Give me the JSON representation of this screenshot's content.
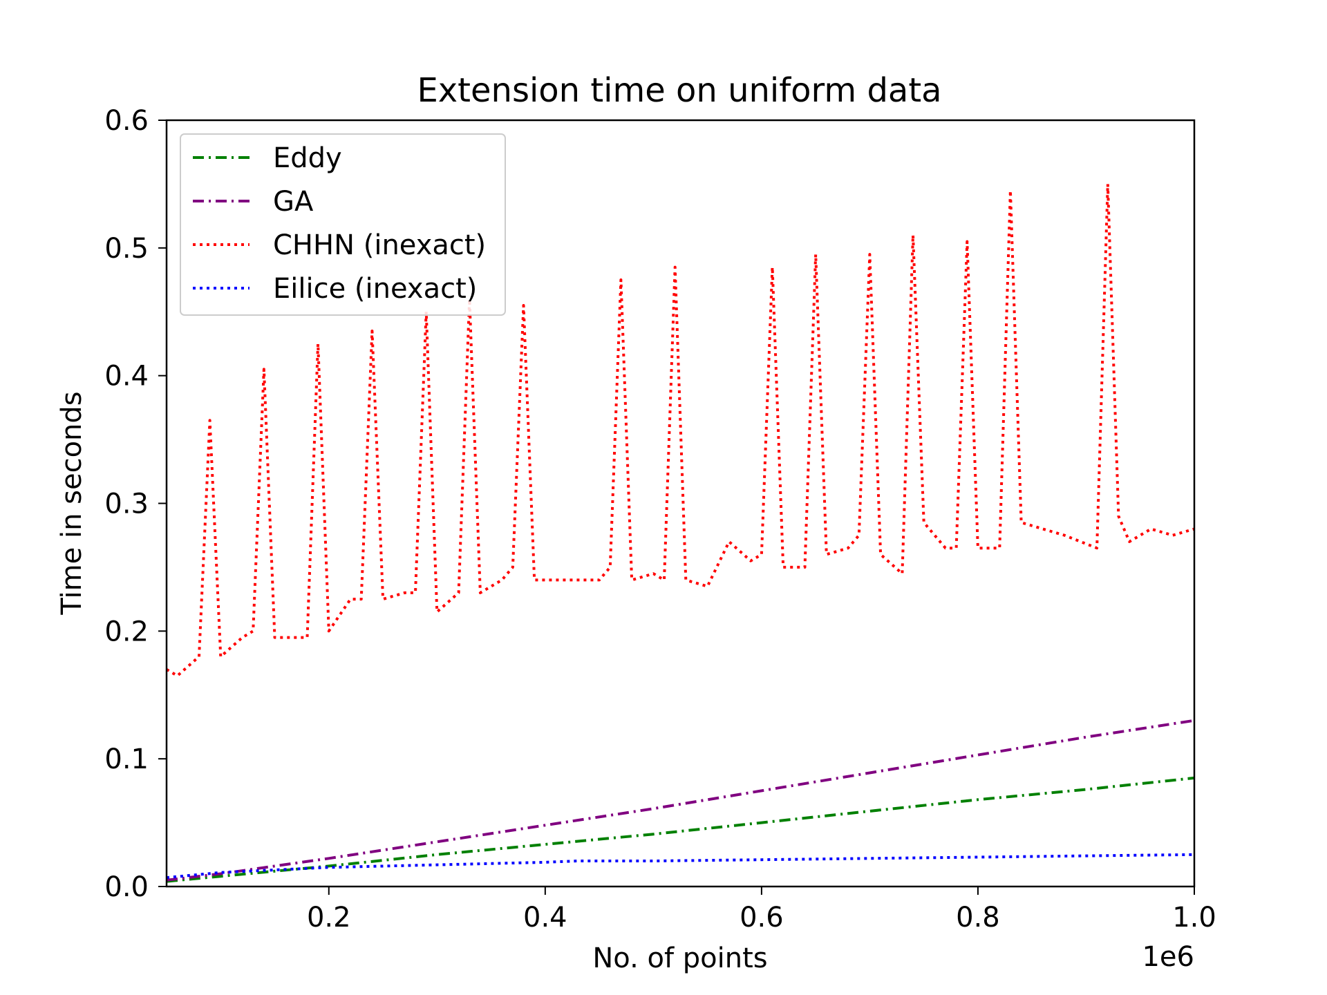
{
  "chart_data": {
    "type": "line",
    "title": "Extension time on uniform data",
    "xlabel": "No. of points",
    "ylabel": "Time in seconds",
    "x_offset_label": "1e6",
    "xlim": [
      0.05,
      1.0
    ],
    "ylim": [
      0.0,
      0.6
    ],
    "x_ticks": [
      0.2,
      0.4,
      0.6,
      0.8,
      1.0
    ],
    "x_tick_labels": [
      "0.2",
      "0.4",
      "0.6",
      "0.8",
      "1.0"
    ],
    "y_ticks": [
      0.0,
      0.1,
      0.2,
      0.3,
      0.4,
      0.5,
      0.6
    ],
    "y_tick_labels": [
      "0.0",
      "0.1",
      "0.2",
      "0.3",
      "0.4",
      "0.5",
      "0.6"
    ],
    "grid": false,
    "legend_position": "top-left",
    "series": [
      {
        "name": "Eddy",
        "color": "#008000",
        "style": "dashdot",
        "x": [
          0.05,
          0.1,
          0.2,
          0.3,
          0.4,
          0.5,
          0.6,
          0.7,
          0.8,
          0.9,
          1.0
        ],
        "y": [
          0.004,
          0.008,
          0.016,
          0.025,
          0.033,
          0.041,
          0.05,
          0.059,
          0.068,
          0.076,
          0.085
        ]
      },
      {
        "name": "GA",
        "color": "#800080",
        "style": "dashdot",
        "x": [
          0.05,
          0.1,
          0.2,
          0.3,
          0.4,
          0.5,
          0.6,
          0.7,
          0.8,
          0.9,
          1.0
        ],
        "y": [
          0.005,
          0.01,
          0.022,
          0.035,
          0.048,
          0.061,
          0.075,
          0.089,
          0.103,
          0.117,
          0.13
        ]
      },
      {
        "name": "CHHN (inexact)",
        "color": "#ff0000",
        "style": "dotted",
        "x": [
          0.05,
          0.06,
          0.08,
          0.09,
          0.1,
          0.12,
          0.13,
          0.14,
          0.15,
          0.17,
          0.18,
          0.19,
          0.2,
          0.22,
          0.23,
          0.24,
          0.25,
          0.27,
          0.28,
          0.29,
          0.3,
          0.32,
          0.33,
          0.34,
          0.36,
          0.37,
          0.38,
          0.39,
          0.41,
          0.43,
          0.45,
          0.46,
          0.47,
          0.48,
          0.5,
          0.51,
          0.52,
          0.53,
          0.55,
          0.57,
          0.59,
          0.6,
          0.61,
          0.62,
          0.64,
          0.65,
          0.66,
          0.68,
          0.69,
          0.7,
          0.71,
          0.73,
          0.74,
          0.75,
          0.77,
          0.78,
          0.79,
          0.8,
          0.82,
          0.83,
          0.84,
          0.86,
          0.88,
          0.91,
          0.92,
          0.93,
          0.94,
          0.96,
          0.98,
          1.0
        ],
        "y": [
          0.17,
          0.165,
          0.18,
          0.365,
          0.18,
          0.195,
          0.2,
          0.405,
          0.195,
          0.195,
          0.195,
          0.425,
          0.2,
          0.225,
          0.225,
          0.435,
          0.225,
          0.23,
          0.23,
          0.45,
          0.215,
          0.23,
          0.46,
          0.23,
          0.24,
          0.25,
          0.455,
          0.24,
          0.24,
          0.24,
          0.24,
          0.25,
          0.475,
          0.24,
          0.245,
          0.24,
          0.485,
          0.24,
          0.235,
          0.27,
          0.255,
          0.26,
          0.485,
          0.25,
          0.25,
          0.495,
          0.26,
          0.265,
          0.275,
          0.495,
          0.26,
          0.245,
          0.51,
          0.285,
          0.265,
          0.265,
          0.505,
          0.265,
          0.265,
          0.545,
          0.285,
          0.28,
          0.275,
          0.265,
          0.55,
          0.29,
          0.27,
          0.28,
          0.275,
          0.28
        ]
      },
      {
        "name": "Eilice (inexact)",
        "color": "#0000ff",
        "style": "dotted",
        "x": [
          0.05,
          0.1,
          0.2,
          0.3,
          0.4,
          0.43,
          0.5,
          0.6,
          0.7,
          0.8,
          0.9,
          1.0
        ],
        "y": [
          0.007,
          0.011,
          0.015,
          0.017,
          0.019,
          0.02,
          0.02,
          0.021,
          0.022,
          0.023,
          0.024,
          0.025
        ]
      }
    ]
  }
}
